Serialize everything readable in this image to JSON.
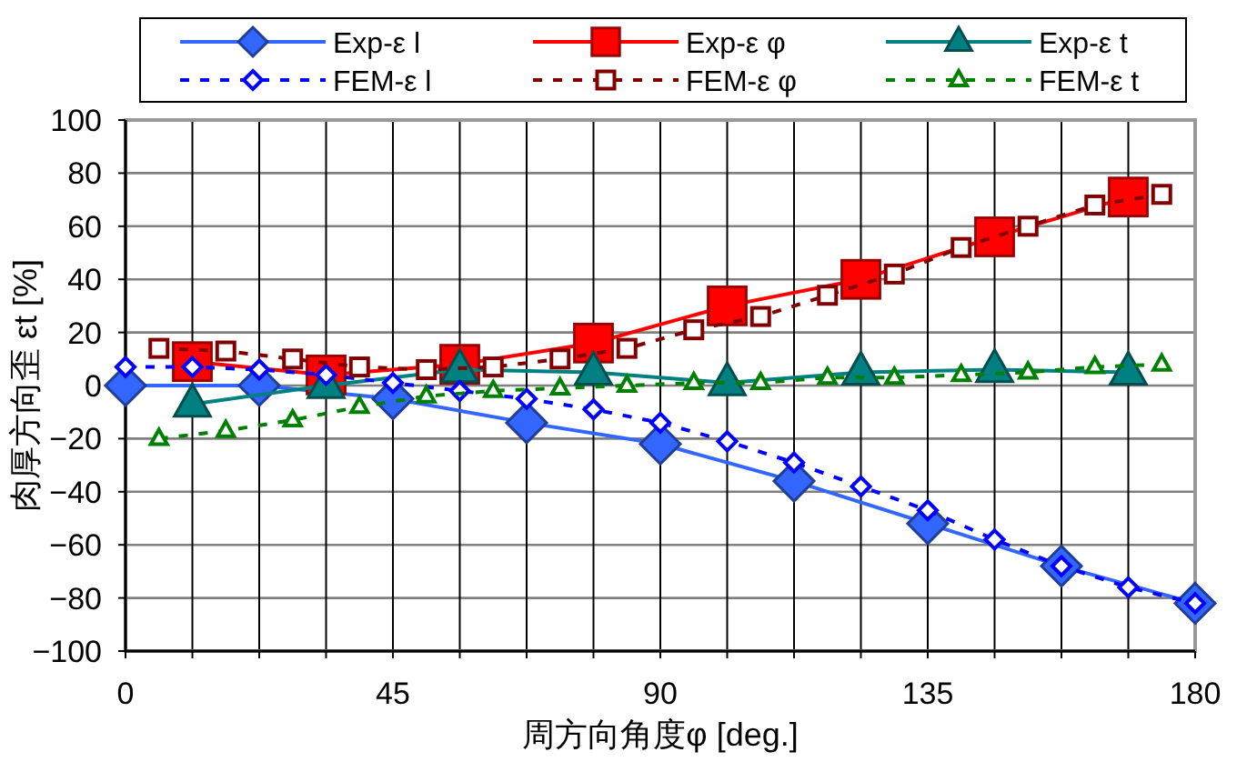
{
  "chart_data": {
    "type": "line",
    "xlabel": "周方向角度φ [deg.]",
    "ylabel": "肉厚方向歪 εt [%]",
    "xlim": [
      0,
      180
    ],
    "ylim": [
      -100,
      100
    ],
    "xticks": [
      0,
      {
        "value": 11.25,
        "label": null
      },
      {
        "value": 22.5,
        "label": null
      },
      {
        "value": 33.75,
        "label": null
      },
      45,
      {
        "value": 56.25,
        "label": null
      },
      {
        "value": 67.5,
        "label": null
      },
      {
        "value": 78.75,
        "label": null
      },
      90,
      {
        "value": 101.25,
        "label": null
      },
      {
        "value": 112.5,
        "label": null
      },
      {
        "value": 123.75,
        "label": null
      },
      135,
      {
        "value": 146.25,
        "label": null
      },
      {
        "value": 157.5,
        "label": null
      },
      {
        "value": 168.75,
        "label": null
      },
      180
    ],
    "yticks": [
      -100,
      -80,
      -60,
      -40,
      -20,
      0,
      20,
      40,
      60,
      80,
      100
    ],
    "grid": true,
    "legend": "top",
    "series": [
      {
        "name": "Exp-ε l",
        "color": "#3366ff",
        "marker": "diamond",
        "line_style": "solid",
        "x": [
          0,
          22.5,
          45,
          67.5,
          90,
          112.5,
          135,
          157.5,
          180
        ],
        "values": [
          0,
          0,
          -5,
          -14,
          -22,
          -36,
          -52,
          -68,
          -82
        ]
      },
      {
        "name": "Exp-ε φ",
        "color": "#ff0000",
        "marker": "square",
        "line_style": "solid",
        "x": [
          11.25,
          33.75,
          56.25,
          78.75,
          101.25,
          123.75,
          146.25,
          168.75
        ],
        "values": [
          9,
          4,
          8,
          16,
          30,
          40,
          56,
          71
        ]
      },
      {
        "name": "Exp-ε t",
        "color": "#008080",
        "marker": "triangle",
        "line_style": "solid",
        "x": [
          11.25,
          33.75,
          56.25,
          78.75,
          101.25,
          123.75,
          146.25,
          168.75
        ],
        "values": [
          -7,
          0,
          6,
          5,
          1,
          5,
          6,
          5
        ]
      },
      {
        "name": "FEM-ε l",
        "color": "#0000ff",
        "marker": "diamond",
        "line_style": "dashed",
        "x": [
          0,
          11.25,
          22.5,
          33.75,
          45,
          56.25,
          67.5,
          78.75,
          90,
          101.25,
          112.5,
          123.75,
          135,
          146.25,
          157.5,
          168.75,
          180
        ],
        "values": [
          7,
          7,
          6,
          4,
          1,
          -2,
          -5,
          -9,
          -14,
          -21,
          -29,
          -38,
          -47,
          -58,
          -68,
          -76,
          -82
        ]
      },
      {
        "name": "FEM-ε φ",
        "color": "#800000",
        "marker": "square",
        "line_style": "dashed",
        "x": [
          5.625,
          16.875,
          28.125,
          39.375,
          50.625,
          61.875,
          73.125,
          84.375,
          95.625,
          106.875,
          118.125,
          129.375,
          140.625,
          151.875,
          163.125,
          174.375
        ],
        "values": [
          14,
          13,
          10,
          7,
          6,
          7,
          10,
          14,
          21,
          26,
          34,
          42,
          52,
          60,
          68,
          72
        ]
      },
      {
        "name": "FEM-ε t",
        "color": "#008000",
        "marker": "triangle",
        "line_style": "dashed",
        "x": [
          5.625,
          16.875,
          28.125,
          39.375,
          50.625,
          61.875,
          73.125,
          84.375,
          95.625,
          106.875,
          118.125,
          129.375,
          140.625,
          151.875,
          163.125,
          174.375
        ],
        "values": [
          -20,
          -17,
          -13,
          -8,
          -4,
          -2,
          -1,
          0,
          1,
          1,
          3,
          3,
          4,
          5,
          7,
          8
        ]
      }
    ]
  }
}
